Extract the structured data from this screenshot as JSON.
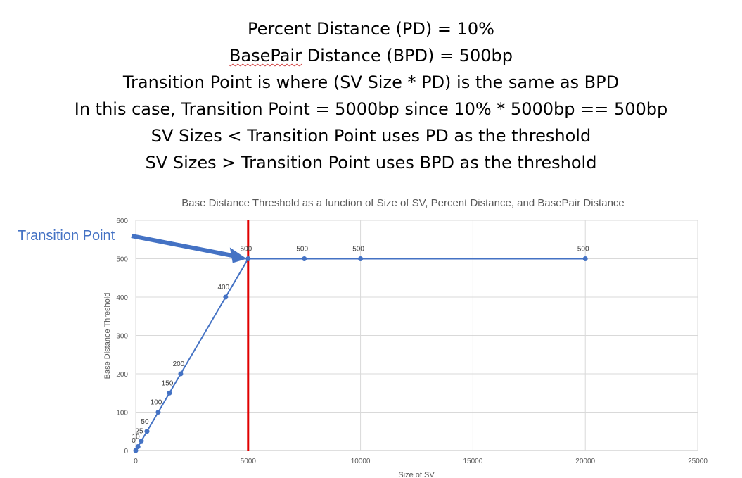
{
  "header": {
    "lines": [
      "Percent Distance (PD) = 10%",
      "BasePair Distance (BPD) = 500bp",
      "Transition Point is where (SV Size * PD) is the same as BPD",
      "In this case, Transition Point = 5000bp since 10% * 5000bp == 500bp",
      "SV Sizes < Transition Point uses PD as the threshold",
      "SV Sizes > Transition Point uses BPD as the threshold"
    ],
    "line2_prefix": "BasePair",
    "line2_suffix": " Distance (BPD) = 500bp"
  },
  "annotation": {
    "label": "Transition Point",
    "color": "#4472c4"
  },
  "chart_data": {
    "type": "line",
    "title": "Base Distance Threshold as a function of Size of SV, Percent Distance, and BasePair Distance",
    "xlabel": "Size of SV",
    "ylabel": "Base Distance Threshold",
    "xlim": [
      0,
      25000
    ],
    "ylim": [
      0,
      600
    ],
    "x_ticks": [
      0,
      5000,
      10000,
      15000,
      20000,
      25000
    ],
    "y_ticks": [
      0,
      100,
      200,
      300,
      400,
      500,
      600
    ],
    "grid": true,
    "series": [
      {
        "color": "#4472c4",
        "points": [
          {
            "x": 0,
            "y": 0,
            "label": "0"
          },
          {
            "x": 100,
            "y": 10,
            "label": "10"
          },
          {
            "x": 250,
            "y": 25,
            "label": "25"
          },
          {
            "x": 500,
            "y": 50,
            "label": "50"
          },
          {
            "x": 1000,
            "y": 100,
            "label": "100"
          },
          {
            "x": 1500,
            "y": 150,
            "label": "150"
          },
          {
            "x": 2000,
            "y": 200,
            "label": "200"
          },
          {
            "x": 4000,
            "y": 400,
            "label": "400"
          },
          {
            "x": 5000,
            "y": 500,
            "label": "500"
          },
          {
            "x": 7500,
            "y": 500,
            "label": "500"
          },
          {
            "x": 10000,
            "y": 500,
            "label": "500"
          },
          {
            "x": 20000,
            "y": 500,
            "label": "500"
          }
        ]
      }
    ],
    "vertical_marker": {
      "x": 5000,
      "color": "#e00000"
    }
  }
}
